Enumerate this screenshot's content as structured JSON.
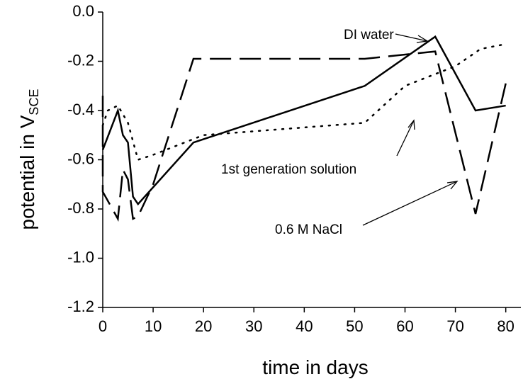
{
  "chart_data": {
    "type": "line",
    "x_label": "time in days",
    "y_label": {
      "text": "potential in V",
      "subscript": "SCE"
    },
    "xlim": [
      0,
      83
    ],
    "ylim": [
      -1.2,
      0
    ],
    "xticks": [
      0,
      10,
      20,
      30,
      40,
      50,
      60,
      70,
      80
    ],
    "yticks": [
      {
        "value": 0,
        "label": "0.0"
      },
      -0.2,
      -0.4,
      -0.6,
      -0.8,
      {
        "value": -1,
        "label": "-1.0"
      },
      -1.2
    ],
    "series": [
      {
        "name": "DI water",
        "color": "#000000",
        "dash": "solid",
        "x": [
          0,
          3,
          4,
          5,
          6,
          7,
          18,
          52,
          66,
          74,
          80
        ],
        "values": [
          -0.56,
          -0.4,
          -0.5,
          -0.53,
          -0.75,
          -0.78,
          -0.53,
          -0.3,
          -0.1,
          -0.4,
          -0.38
        ]
      },
      {
        "name": "1st generation solution",
        "color": "#000000",
        "dash": "dotted",
        "x": [
          0,
          1,
          3,
          5,
          7,
          10,
          20,
          52,
          60,
          70,
          75,
          80
        ],
        "values": [
          -0.46,
          -0.4,
          -0.38,
          -0.45,
          -0.6,
          -0.58,
          -0.5,
          -0.45,
          -0.3,
          -0.22,
          -0.15,
          -0.13
        ]
      },
      {
        "name": "0.6 M NaCl",
        "color": "#000000",
        "dash": "dashed",
        "x": [
          0,
          0,
          3,
          4,
          5,
          6,
          7,
          10,
          18,
          52,
          66,
          74,
          80
        ],
        "values": [
          -0.34,
          -0.73,
          -0.84,
          -0.64,
          -0.68,
          -0.84,
          -0.83,
          -0.7,
          -0.19,
          -0.19,
          -0.16,
          -0.82,
          -0.29
        ]
      }
    ]
  }
}
